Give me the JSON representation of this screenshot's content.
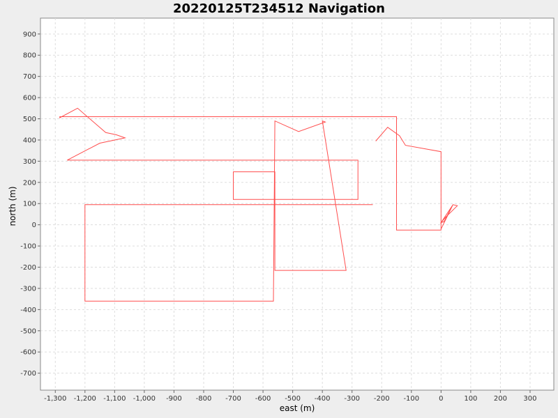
{
  "chart_data": {
    "type": "line",
    "title": "20220125T234512 Navigation",
    "xlabel": "east (m)",
    "ylabel": "north (m)",
    "xlim": [
      -1350,
      380
    ],
    "ylim": [
      -780,
      975
    ],
    "grid": true,
    "xticks": [
      -1300,
      -1200,
      -1100,
      -1000,
      -900,
      -800,
      -700,
      -600,
      -500,
      -400,
      -300,
      -200,
      -100,
      0,
      100,
      200,
      300
    ],
    "xtick_labels": [
      "-1,300",
      "-1,200",
      "-1,100",
      "-1,000",
      "-900",
      "-800",
      "-700",
      "-600",
      "-500",
      "-400",
      "-300",
      "-200",
      "-100",
      "0",
      "100",
      "200",
      "300"
    ],
    "yticks": [
      -700,
      -600,
      -500,
      -400,
      -300,
      -200,
      -100,
      0,
      100,
      200,
      300,
      400,
      500,
      600,
      700,
      800,
      900
    ],
    "ytick_labels": [
      "-700",
      "-600",
      "-500",
      "-400",
      "-300",
      "-200",
      "-100",
      "0",
      "100",
      "200",
      "300",
      "400",
      "500",
      "600",
      "700",
      "800",
      "900"
    ],
    "line_color": "#ff4d4d",
    "series": [
      {
        "x": [
          -220,
          -180,
          -140,
          -120,
          0,
          0,
          40,
          10,
          0,
          15,
          55,
          40,
          0,
          0,
          -150,
          -150,
          -1285,
          -1285,
          -1225,
          -1130,
          -1095,
          -1065,
          -1100,
          -1150,
          -1260,
          -1260,
          -280,
          -280,
          -410,
          -440,
          -700,
          -700,
          -560,
          -560,
          -370,
          -345,
          -320,
          -400,
          -390,
          -480,
          -560,
          -565,
          -1200,
          -1200,
          -570,
          -540,
          -490,
          -550,
          -700,
          -710,
          -760,
          -880,
          -880,
          -870,
          -760,
          -910,
          -965,
          -1000,
          -1000,
          -960,
          -780,
          -700,
          -650,
          -600,
          -560,
          -540,
          -525,
          -520,
          -500,
          -490,
          -500,
          -520,
          -720,
          -740,
          -740,
          -700,
          -700,
          -680,
          -660,
          -650,
          -600,
          -600,
          -560,
          -520,
          -400,
          -370,
          -330,
          -300,
          -300,
          -280,
          -255,
          -230,
          -300,
          -600,
          -650,
          -680,
          -700,
          -700,
          -680,
          -660,
          -620,
          -580,
          -520,
          -520,
          -620,
          -650,
          -640,
          -620,
          -600,
          -580,
          -560,
          -540,
          -510,
          -490,
          -470,
          -450,
          -430,
          -400,
          -400
        ],
        "y": [
          395,
          460,
          420,
          375,
          345,
          -20,
          95,
          15,
          10,
          35,
          90,
          95,
          10,
          -25,
          -25,
          510,
          510,
          505,
          550,
          435,
          425,
          410,
          400,
          385,
          305,
          305,
          305,
          120,
          120,
          120,
          120,
          250,
          250,
          -215,
          -215,
          -215,
          -215,
          490,
          485,
          440,
          490,
          -360,
          -360,
          95,
          95,
          95,
          95,
          95,
          95,
          95,
          95,
          95,
          95,
          95,
          95,
          95,
          95,
          95,
          95,
          95,
          95,
          95,
          95,
          95,
          95,
          95,
          95,
          95,
          95,
          95,
          95,
          95,
          95,
          95,
          95,
          95,
          95,
          95,
          95,
          95,
          95,
          95,
          95,
          95,
          95,
          95,
          95,
          95,
          95,
          95,
          95,
          95,
          95,
          95,
          95,
          95,
          95,
          95,
          95,
          95,
          95,
          95,
          95,
          95,
          95,
          95,
          95,
          95,
          95,
          95,
          95,
          95,
          95,
          95,
          95,
          95,
          95,
          95,
          95
        ]
      }
    ]
  }
}
